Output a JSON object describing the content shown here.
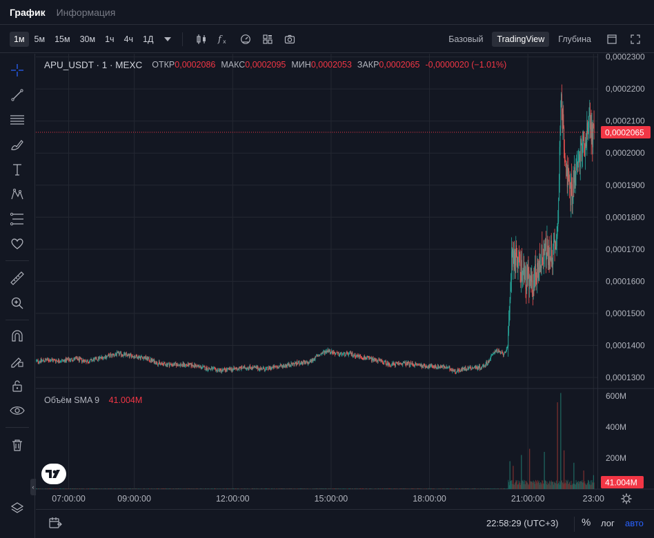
{
  "tabs": [
    {
      "label": "График",
      "active": true
    },
    {
      "label": "Информация",
      "active": false
    }
  ],
  "toolbar": {
    "timeframes": [
      {
        "label": "1м",
        "active": true
      },
      {
        "label": "5м",
        "active": false
      },
      {
        "label": "15м",
        "active": false
      },
      {
        "label": "30м",
        "active": false
      },
      {
        "label": "1ч",
        "active": false
      },
      {
        "label": "4ч",
        "active": false
      },
      {
        "label": "1Д",
        "active": false
      }
    ],
    "icons": [
      "chevron-down-icon",
      "candles-icon",
      "fx-icon",
      "speedometer-icon",
      "layout-grid-icon",
      "camera-icon"
    ],
    "views": [
      {
        "label": "Базовый",
        "active": false
      },
      {
        "label": "TradingView",
        "active": true
      },
      {
        "label": "Глубина",
        "active": false
      }
    ]
  },
  "sidebar": {
    "icons": [
      "crosshair-icon",
      "trend-line-icon",
      "horizontal-lines-icon",
      "brush-icon",
      "text-icon",
      "pattern-icon",
      "fib-icon",
      "heart-icon",
      "ruler-icon",
      "zoom-in-icon",
      "magnet-icon",
      "lock-pencil-icon",
      "lock-icon",
      "eye-icon",
      "trash-icon",
      "layers-icon"
    ]
  },
  "legend": {
    "symbol": "APU_USDT · 1 · MEXC",
    "open_label": "ОТКР",
    "open": "0,0002086",
    "high_label": "МАКС",
    "high": "0,0002095",
    "low_label": "МИН",
    "low": "0,0002053",
    "close_label": "ЗАКР",
    "close": "0,0002065",
    "change": "-0,0000020 (−1.01%)"
  },
  "volume_legend": {
    "label": "Объём SMA 9",
    "value": "41.004M"
  },
  "colors": {
    "up": "#26a69a",
    "down": "#ef5350",
    "price_tag": "#f23645",
    "grid": "#242832",
    "background": "#131722"
  },
  "chart_data": {
    "type": "candlestick",
    "symbol": "APU_USDT",
    "interval": "1",
    "exchange": "MEXC",
    "price_axis": {
      "ticks": [
        "0,0002300",
        "0,0002200",
        "0,0002100",
        "0,0002000",
        "0,0001900",
        "0,0001800",
        "0,0001700",
        "0,0001600",
        "0,0001500",
        "0,0001400",
        "0,0001300"
      ],
      "range": [
        0.00012676,
        0.000231
      ],
      "current_price": "0,0002065",
      "current_value": 0.0002065
    },
    "volume_axis": {
      "ticks": [
        "600M",
        "400M",
        "200M"
      ],
      "range": [
        0,
        640
      ],
      "sma_value": "41.004M"
    },
    "time_axis": {
      "ticks": [
        "07:00:00",
        "09:00:00",
        "12:00:00",
        "15:00:00",
        "18:00:00",
        "21:00:00",
        "23:00"
      ],
      "tick_hours": [
        7,
        9,
        12,
        15,
        18,
        21,
        23
      ],
      "range_hours": [
        6.0,
        23.12
      ]
    },
    "price_path": [
      [
        6.0,
        0.000135
      ],
      [
        6.4,
        0.0001355
      ],
      [
        6.8,
        0.0001352
      ],
      [
        7.2,
        0.0001358
      ],
      [
        7.6,
        0.000135
      ],
      [
        8.0,
        0.0001362
      ],
      [
        8.5,
        0.0001374
      ],
      [
        9.0,
        0.0001366
      ],
      [
        9.3,
        0.0001362
      ],
      [
        9.8,
        0.0001342
      ],
      [
        10.3,
        0.000134
      ],
      [
        10.8,
        0.0001338
      ],
      [
        11.2,
        0.0001328
      ],
      [
        11.6,
        0.0001322
      ],
      [
        12.0,
        0.0001326
      ],
      [
        12.5,
        0.0001332
      ],
      [
        13.0,
        0.0001326
      ],
      [
        13.5,
        0.0001336
      ],
      [
        14.0,
        0.0001345
      ],
      [
        14.3,
        0.0001345
      ],
      [
        14.6,
        0.0001368
      ],
      [
        14.9,
        0.0001385
      ],
      [
        15.2,
        0.0001372
      ],
      [
        15.6,
        0.0001373
      ],
      [
        16.0,
        0.0001362
      ],
      [
        16.4,
        0.0001354
      ],
      [
        16.8,
        0.000134
      ],
      [
        17.2,
        0.0001344
      ],
      [
        17.6,
        0.000134
      ],
      [
        18.0,
        0.0001334
      ],
      [
        18.4,
        0.0001334
      ],
      [
        18.8,
        0.000132
      ],
      [
        19.2,
        0.000133
      ],
      [
        19.6,
        0.0001332
      ],
      [
        19.8,
        0.000135
      ],
      [
        20.0,
        0.0001385
      ],
      [
        20.25,
        0.0001373
      ],
      [
        20.4,
        0.0001395
      ],
      [
        20.5,
        0.000169
      ],
      [
        20.7,
        0.000166
      ],
      [
        20.9,
        0.000162
      ],
      [
        21.1,
        0.000158
      ],
      [
        21.3,
        0.000164
      ],
      [
        21.5,
        0.00017
      ],
      [
        21.65,
        0.000168
      ],
      [
        21.8,
        0.00017
      ],
      [
        21.9,
        0.000175
      ],
      [
        22.0,
        0.000216
      ],
      [
        22.1,
        0.000205
      ],
      [
        22.2,
        0.000192
      ],
      [
        22.3,
        0.000188
      ],
      [
        22.45,
        0.000193
      ],
      [
        22.6,
        0.0002
      ],
      [
        22.75,
        0.000204
      ],
      [
        22.85,
        0.000211
      ],
      [
        22.95,
        0.000206
      ],
      [
        23.03,
        0.0002065
      ]
    ],
    "volume_spikes_m": [
      [
        20.45,
        180
      ],
      [
        20.55,
        150
      ],
      [
        20.8,
        220
      ],
      [
        21.05,
        260
      ],
      [
        21.5,
        240
      ],
      [
        21.9,
        560
      ],
      [
        22.0,
        620
      ],
      [
        22.1,
        250
      ],
      [
        22.4,
        170
      ],
      [
        22.7,
        120
      ],
      [
        23.0,
        90
      ]
    ]
  },
  "bottom": {
    "clock": "22:58:29 (UTC+3)",
    "percent": "%",
    "log": "лог",
    "auto": "авто"
  }
}
